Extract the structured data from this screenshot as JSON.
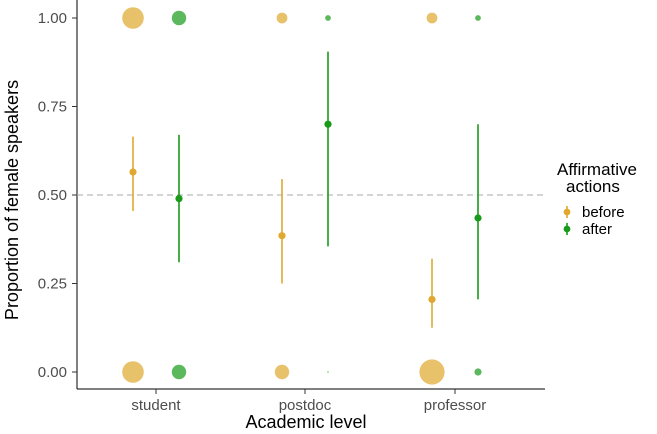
{
  "chart_data": {
    "type": "scatter",
    "title": "",
    "xlabel": "Academic level",
    "ylabel": "Proportion of female speakers",
    "categories": [
      "student",
      "postdoc",
      "professor"
    ],
    "ylim": [
      0,
      1
    ],
    "yticks": [
      0.0,
      0.25,
      0.5,
      0.75,
      1.0
    ],
    "ytick_labels": [
      "0.00",
      "0.25",
      "0.50",
      "0.75",
      "1.00"
    ],
    "reference_line": 0.5,
    "legend": {
      "title_line1": "Affirmative",
      "title_line2": "actions",
      "placement": "right"
    },
    "series": [
      {
        "name": "before",
        "color": "#e0a82e",
        "bubble_color": "#e8c26a",
        "estimates": [
          0.565,
          0.385,
          0.205
        ],
        "ci_low": [
          0.455,
          0.25,
          0.125
        ],
        "ci_high": [
          0.665,
          0.545,
          0.32
        ],
        "bubbles_at_one": [
          3,
          1.5,
          1.5
        ],
        "bubbles_at_zero": [
          3,
          2,
          3.5
        ]
      },
      {
        "name": "after",
        "color": "#1a9a1a",
        "bubble_color": "#5cb85c",
        "estimates": [
          0.49,
          0.7,
          0.435
        ],
        "ci_low": [
          0.31,
          0.355,
          0.205
        ],
        "ci_high": [
          0.67,
          0.905,
          0.7
        ],
        "bubbles_at_one": [
          2,
          0.8,
          0.8
        ],
        "bubbles_at_zero": [
          2,
          0.2,
          1
        ]
      }
    ]
  }
}
